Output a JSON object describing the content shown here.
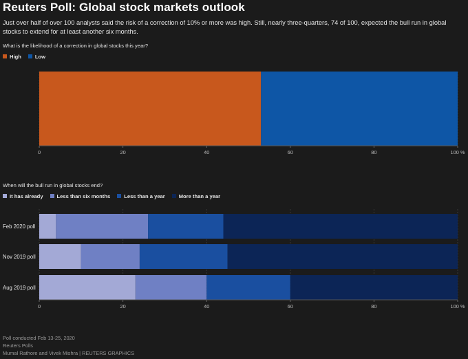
{
  "header": {
    "title": "Reuters Poll: Global stock markets outlook",
    "subtitle": "Just over half of over 100 analysts said the risk of a correction of 10% or more was high. Still, nearly three-quarters, 74 of 100, expected the bull run in global stocks to extend for at least another six months."
  },
  "chart_data": [
    {
      "type": "bar",
      "stacked": true,
      "orientation": "horizontal",
      "question": "What is the likelihood of a correction in global stocks this year?",
      "categories": [
        ""
      ],
      "series": [
        {
          "name": "High",
          "color": "#c8581d",
          "values": [
            53
          ]
        },
        {
          "name": "Low",
          "color": "#0e56a6",
          "values": [
            47
          ]
        }
      ],
      "xlim": [
        0,
        100
      ],
      "xticks": [
        "0",
        "20",
        "40",
        "60",
        "80",
        "100 %"
      ]
    },
    {
      "type": "bar",
      "stacked": true,
      "orientation": "horizontal",
      "question": "When will the bull run in global stocks end?",
      "categories": [
        "Feb 2020 poll",
        "Nov 2019 poll",
        "Aug 2019 poll"
      ],
      "series": [
        {
          "name": "It has already",
          "color": "#a3a9d6",
          "values": [
            4,
            10,
            23
          ]
        },
        {
          "name": "Less than six months",
          "color": "#6f80c4",
          "values": [
            22,
            14,
            17
          ]
        },
        {
          "name": "Less than a year",
          "color": "#1a4fa0",
          "values": [
            18,
            21,
            20
          ]
        },
        {
          "name": "More than a year",
          "color": "#0c2556",
          "values": [
            56,
            55,
            40
          ]
        }
      ],
      "xlim": [
        0,
        100
      ],
      "xticks": [
        "0",
        "20",
        "40",
        "60",
        "80",
        "100 %"
      ]
    }
  ],
  "footer": {
    "line1": "Poll conducted Feb 13-25, 2020",
    "line2": "Reuters Polls",
    "line3": "Mumal Rathore and Vivek Mishra    | REUTERS GRAPHICS"
  }
}
